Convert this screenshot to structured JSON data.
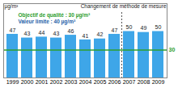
{
  "chart_data": {
    "type": "bar",
    "y_label": "µg/m³",
    "categories": [
      "1999",
      "2000",
      "2001",
      "2002",
      "2003",
      "2004",
      "2005",
      "2006",
      "2007",
      "2008",
      "2009"
    ],
    "values": [
      47,
      43,
      44,
      43,
      46,
      41,
      42,
      47,
      50,
      49,
      50
    ],
    "color": "#3ea6e8",
    "ylim": [
      0,
      80
    ],
    "yticks": [],
    "tick_labels": "x",
    "data_labels": true,
    "reference_lines": [
      {
        "value": 30,
        "label": "30",
        "color": "#2e9e2e"
      }
    ],
    "annotations": [
      {
        "text": "Objectif de qualité : 30 µg/m³",
        "color": "#2e9e2e"
      },
      {
        "text": "Valeur limite : 40 µg/m³",
        "color": "#1f5fa8"
      }
    ],
    "method_change": {
      "after": "2006",
      "label": "Changement de méthode de mesure"
    }
  }
}
